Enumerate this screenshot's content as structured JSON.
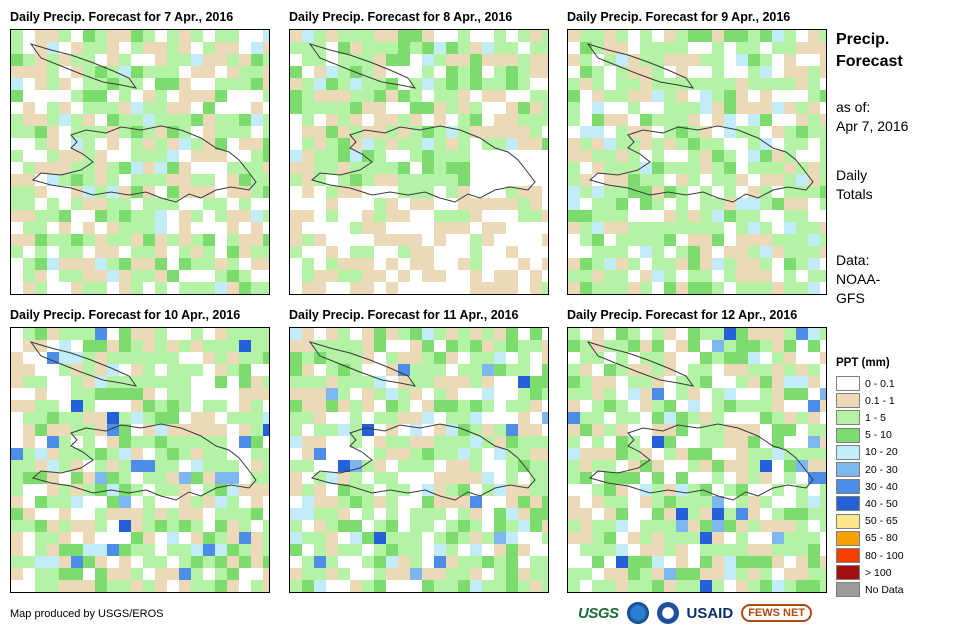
{
  "maps": [
    {
      "title": "Daily Precip. Forecast for 7 Apr., 2016",
      "seed": 7
    },
    {
      "title": "Daily Precip. Forecast for 8 Apr., 2016",
      "seed": 8
    },
    {
      "title": "Daily Precip. Forecast for 9 Apr., 2016",
      "seed": 9
    },
    {
      "title": "Daily Precip. Forecast for 10 Apr., 2016",
      "seed": 10
    },
    {
      "title": "Daily Precip. Forecast for 11 Apr., 2016",
      "seed": 11
    },
    {
      "title": "Daily Precip. Forecast for 12 Apr., 2016",
      "seed": 12
    }
  ],
  "sidebar": {
    "title_line1": "Precip.",
    "title_line2": "Forecast",
    "asof_label": "as of:",
    "asof_date": "Apr 7, 2016",
    "daily_line1": "Daily",
    "daily_line2": "Totals",
    "data_line1": "Data:",
    "data_line2": "NOAA-",
    "data_line3": "GFS"
  },
  "legend": {
    "title": "PPT (mm)",
    "items": [
      {
        "label": "0 - 0.1",
        "color": "#ffffff"
      },
      {
        "label": "0.1 - 1",
        "color": "#ecd9b8"
      },
      {
        "label": "1 - 5",
        "color": "#b4f3a6"
      },
      {
        "label": "5 - 10",
        "color": "#7ddc6e"
      },
      {
        "label": "10 - 20",
        "color": "#c2ecf7"
      },
      {
        "label": "20 - 30",
        "color": "#7eb6ef"
      },
      {
        "label": "30 - 40",
        "color": "#4c8de8"
      },
      {
        "label": "40 - 50",
        "color": "#2460d8"
      },
      {
        "label": "50 - 65",
        "color": "#fde68a"
      },
      {
        "label": "65 - 80",
        "color": "#f5a300"
      },
      {
        "label": "80 - 100",
        "color": "#f44000"
      },
      {
        "label": "> 100",
        "color": "#a01010"
      },
      {
        "label": "No Data",
        "color": "#9b9b9b"
      }
    ]
  },
  "footer": {
    "credit": "Map produced by USGS/EROS",
    "logo_usgs": "USGS",
    "logo_usaid": "USAID",
    "logo_fews": "FEWS NET"
  }
}
